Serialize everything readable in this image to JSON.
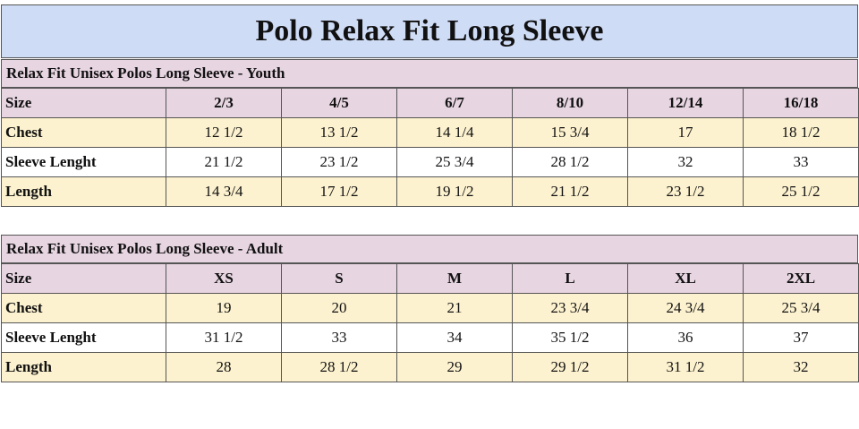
{
  "title": "Polo Relax Fit Long Sleeve",
  "tables": [
    {
      "caption": "Relax Fit Unisex Polos Long Sleeve - Youth",
      "header": [
        "Size",
        "2/3",
        "4/5",
        "6/7",
        "8/10",
        "12/14",
        "16/18"
      ],
      "rows": [
        [
          "Chest",
          "12 1/2",
          "13 1/2",
          "14 1/4",
          "15 3/4",
          "17",
          "18 1/2"
        ],
        [
          "Sleeve Lenght",
          "21 1/2",
          "23 1/2",
          "25 3/4",
          "28 1/2",
          "32",
          "33"
        ],
        [
          "Length",
          "14 3/4",
          "17 1/2",
          "19 1/2",
          "21 1/2",
          "23 1/2",
          "25 1/2"
        ]
      ]
    },
    {
      "caption": "Relax Fit Unisex Polos Long Sleeve - Adult",
      "header": [
        "Size",
        "XS",
        "S",
        "M",
        "L",
        "XL",
        "2XL"
      ],
      "rows": [
        [
          "Chest",
          "19",
          "20",
          "21",
          "23 3/4",
          "24 3/4",
          "25 3/4"
        ],
        [
          "Sleeve Lenght",
          "31 1/2",
          "33",
          "34",
          "35 1/2",
          "36",
          "37"
        ],
        [
          "Length",
          "28",
          "28 1/2",
          "29",
          "29 1/2",
          "31 1/2",
          "32"
        ]
      ]
    }
  ]
}
